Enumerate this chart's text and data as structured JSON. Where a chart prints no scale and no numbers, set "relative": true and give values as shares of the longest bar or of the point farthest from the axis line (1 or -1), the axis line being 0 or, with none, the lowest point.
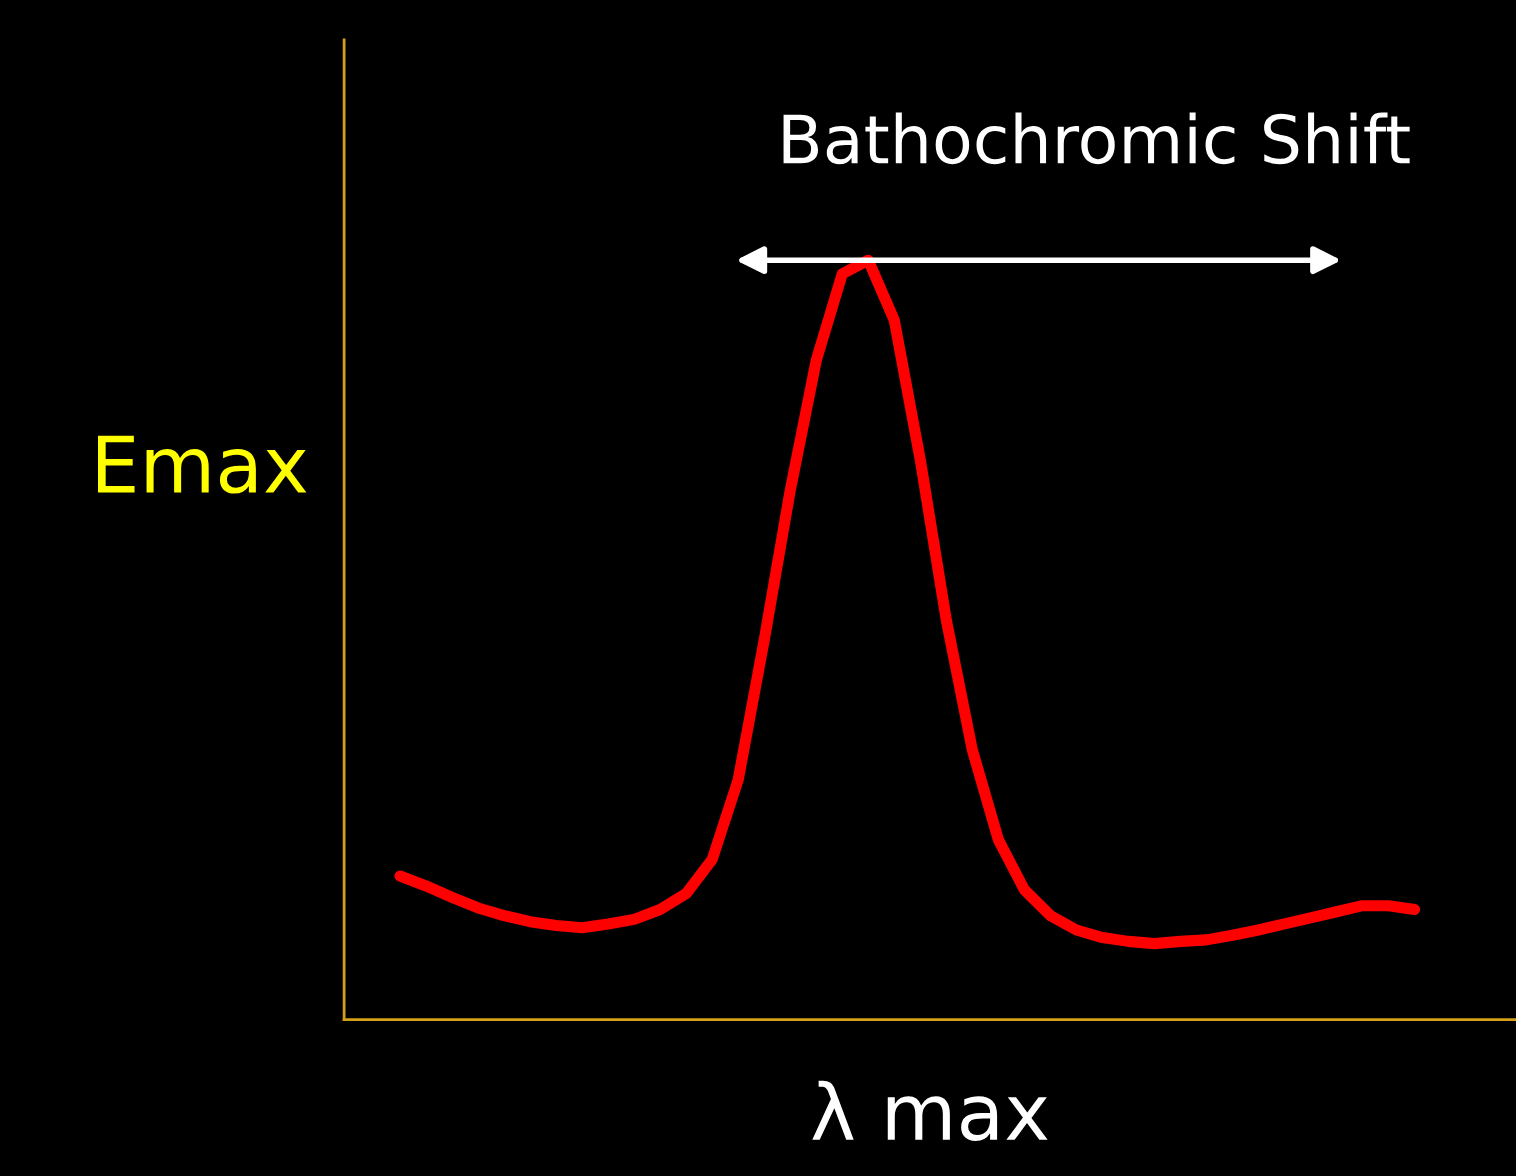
{
  "chart_data": {
    "type": "line",
    "relative": true,
    "xlabel": "λ max",
    "ylabel": "Emax",
    "categories": [
      null,
      null,
      null,
      null,
      null,
      null,
      null,
      null,
      null,
      null,
      null,
      null,
      null,
      null,
      null,
      null,
      null,
      null,
      null,
      null,
      null,
      null,
      null,
      null,
      null,
      null,
      null,
      null,
      null,
      null,
      null,
      null,
      null,
      null,
      null,
      null,
      null,
      null,
      null,
      null
    ],
    "series": [
      {
        "color": "#ff0000",
        "values": [
          0.189,
          0.176,
          0.161,
          0.147,
          0.137,
          0.129,
          0.124,
          0.121,
          0.126,
          0.132,
          0.145,
          0.166,
          0.211,
          0.316,
          0.5,
          0.697,
          0.868,
          0.982,
          1.0,
          0.921,
          0.737,
          0.526,
          0.355,
          0.237,
          0.171,
          0.137,
          0.118,
          0.108,
          0.103,
          0.1,
          0.103,
          0.105,
          0.111,
          0.118,
          0.126,
          0.134,
          0.142,
          0.15,
          0.15,
          0.145
        ]
      }
    ],
    "annotations": [
      "Bathochromic Shift"
    ],
    "legend": false,
    "tick_labels": false,
    "grid": false,
    "marker": "none",
    "line_style": "solid"
  }
}
